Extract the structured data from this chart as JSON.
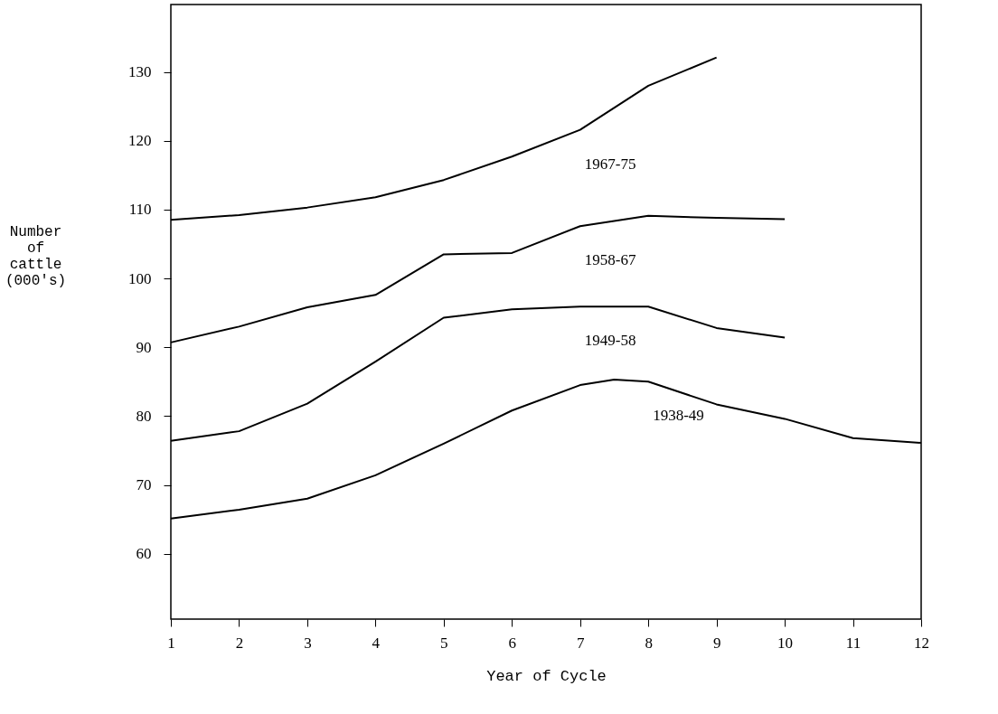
{
  "chart_data": {
    "type": "line",
    "xlabel": "Year of Cycle",
    "ylabel": "Number\nof\ncattle\n(000's)",
    "xlim": [
      1,
      12
    ],
    "xticks": [
      1,
      2,
      3,
      4,
      5,
      6,
      7,
      8,
      9,
      10,
      11,
      12
    ],
    "ylim": [
      50.5,
      139.8
    ],
    "yticks": [
      60,
      70,
      80,
      90,
      100,
      110,
      120,
      130
    ],
    "grid": false,
    "legend": false,
    "marker": "none",
    "line_style": "solid",
    "series": [
      {
        "name": "1967-75",
        "color": "#000000",
        "x": [
          1,
          2,
          3,
          4,
          5,
          6,
          7,
          8,
          9
        ],
        "values": [
          108.5,
          109.2,
          110.3,
          111.8,
          114.3,
          117.7,
          121.6,
          128.0,
          132.1
        ]
      },
      {
        "name": "1958-67",
        "color": "#000000",
        "x": [
          1,
          2,
          3,
          4,
          5,
          6,
          7,
          8,
          9,
          10
        ],
        "values": [
          90.7,
          93.0,
          95.8,
          97.6,
          103.5,
          103.7,
          107.6,
          109.1,
          108.8,
          108.6
        ]
      },
      {
        "name": "1949-58",
        "color": "#000000",
        "x": [
          1,
          2,
          3,
          4,
          5,
          6,
          7,
          8,
          9,
          10
        ],
        "values": [
          76.4,
          77.8,
          81.8,
          87.9,
          94.3,
          95.5,
          95.9,
          95.9,
          92.8,
          91.4
        ]
      },
      {
        "name": "1938-49",
        "color": "#000000",
        "x": [
          1,
          2,
          3,
          4,
          5,
          6,
          7,
          7.5,
          8,
          9,
          10,
          11,
          12
        ],
        "values": [
          65.1,
          66.4,
          68.0,
          71.4,
          76.0,
          80.8,
          84.5,
          85.3,
          85.0,
          81.7,
          79.6,
          76.8,
          76.1
        ]
      }
    ]
  }
}
